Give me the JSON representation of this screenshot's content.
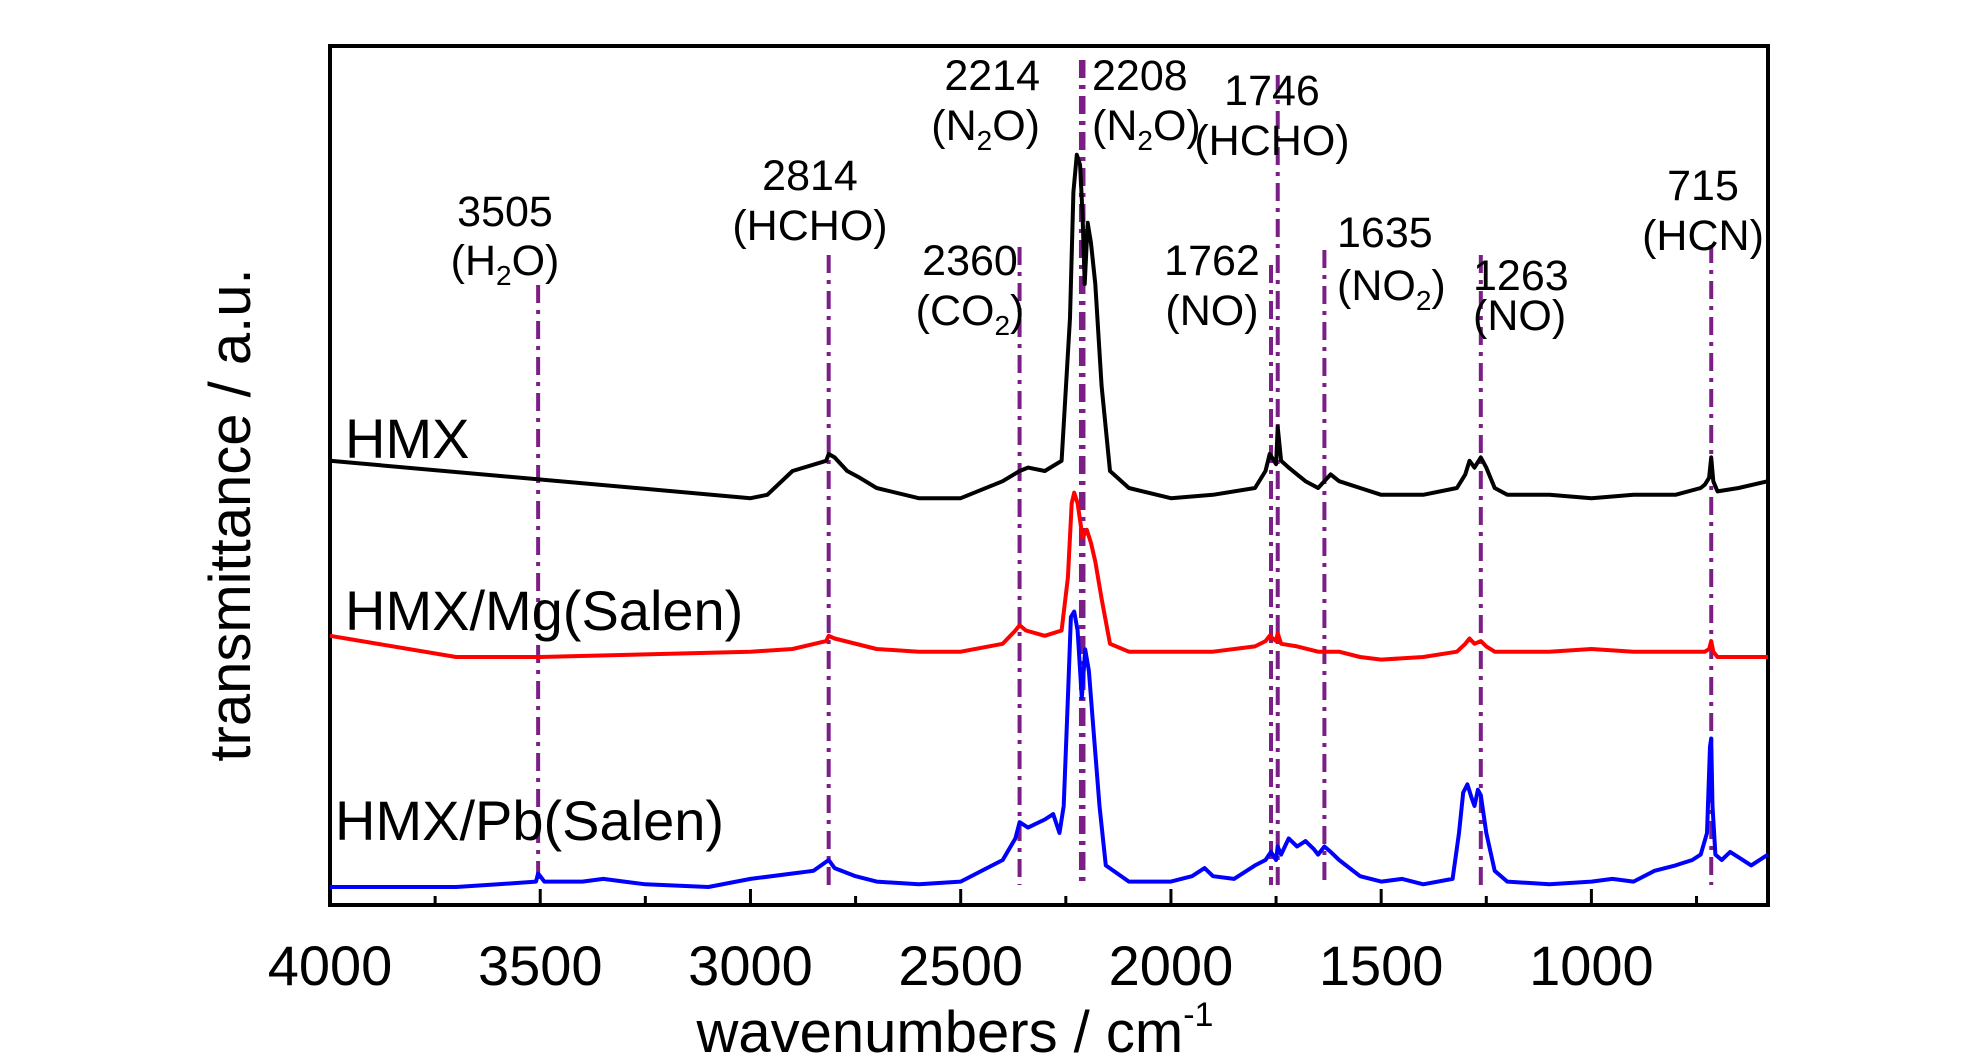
{
  "chart_data": {
    "type": "line",
    "xlabel": "wavenumbers / cm",
    "xlabel_sup": "-1",
    "ylabel": "transmittance / a.u.",
    "xlim": [
      4000,
      580
    ],
    "x_reversed": true,
    "x_ticks": [
      4000,
      3500,
      3000,
      2500,
      2000,
      1500,
      1000
    ],
    "x_tick_labels": [
      "4000",
      "3500",
      "3000",
      "2500",
      "2000",
      "1500",
      "1000"
    ],
    "ylim": [
      0,
      1
    ],
    "grid": false,
    "legend": "none",
    "series": [
      {
        "name": "HMX",
        "color": "#000000",
        "points": [
          [
            4000,
            0.08
          ],
          [
            3000,
            -0.03
          ],
          [
            2960,
            -0.02
          ],
          [
            2900,
            0.05
          ],
          [
            2820,
            0.08
          ],
          [
            2814,
            0.1
          ],
          [
            2800,
            0.09
          ],
          [
            2770,
            0.05
          ],
          [
            2740,
            0.03
          ],
          [
            2700,
            0.0
          ],
          [
            2600,
            -0.03
          ],
          [
            2500,
            -0.03
          ],
          [
            2400,
            0.02
          ],
          [
            2360,
            0.05
          ],
          [
            2340,
            0.06
          ],
          [
            2300,
            0.05
          ],
          [
            2260,
            0.08
          ],
          [
            2240,
            0.5
          ],
          [
            2232,
            0.87
          ],
          [
            2224,
            0.98
          ],
          [
            2216,
            0.95
          ],
          [
            2210,
            0.8
          ],
          [
            2205,
            0.6
          ],
          [
            2198,
            0.78
          ],
          [
            2190,
            0.72
          ],
          [
            2180,
            0.6
          ],
          [
            2165,
            0.3
          ],
          [
            2145,
            0.05
          ],
          [
            2100,
            0.0
          ],
          [
            2000,
            -0.03
          ],
          [
            1900,
            -0.02
          ],
          [
            1800,
            0.0
          ],
          [
            1775,
            0.05
          ],
          [
            1765,
            0.1
          ],
          [
            1750,
            0.07
          ],
          [
            1746,
            0.18
          ],
          [
            1738,
            0.08
          ],
          [
            1720,
            0.06
          ],
          [
            1700,
            0.04
          ],
          [
            1680,
            0.02
          ],
          [
            1650,
            0.0
          ],
          [
            1635,
            0.02
          ],
          [
            1620,
            0.04
          ],
          [
            1600,
            0.02
          ],
          [
            1550,
            0.0
          ],
          [
            1500,
            -0.02
          ],
          [
            1400,
            -0.02
          ],
          [
            1320,
            0.0
          ],
          [
            1300,
            0.04
          ],
          [
            1290,
            0.08
          ],
          [
            1278,
            0.06
          ],
          [
            1263,
            0.09
          ],
          [
            1250,
            0.06
          ],
          [
            1230,
            0.0
          ],
          [
            1200,
            -0.02
          ],
          [
            1100,
            -0.02
          ],
          [
            1000,
            -0.03
          ],
          [
            900,
            -0.02
          ],
          [
            800,
            -0.02
          ],
          [
            740,
            0.0
          ],
          [
            730,
            0.01
          ],
          [
            720,
            0.03
          ],
          [
            715,
            0.09
          ],
          [
            710,
            0.02
          ],
          [
            700,
            -0.01
          ],
          [
            650,
            0.0
          ],
          [
            580,
            0.02
          ]
        ]
      },
      {
        "name": "HMX/Mg(Salen)",
        "color": "#ff0000",
        "points": [
          [
            4000,
            0.08
          ],
          [
            3700,
            0.0
          ],
          [
            3500,
            0.0
          ],
          [
            3000,
            0.02
          ],
          [
            2900,
            0.03
          ],
          [
            2820,
            0.06
          ],
          [
            2814,
            0.08
          ],
          [
            2800,
            0.07
          ],
          [
            2700,
            0.03
          ],
          [
            2600,
            0.02
          ],
          [
            2500,
            0.02
          ],
          [
            2400,
            0.05
          ],
          [
            2370,
            0.1
          ],
          [
            2360,
            0.12
          ],
          [
            2345,
            0.1
          ],
          [
            2300,
            0.08
          ],
          [
            2260,
            0.1
          ],
          [
            2245,
            0.3
          ],
          [
            2236,
            0.58
          ],
          [
            2230,
            0.62
          ],
          [
            2222,
            0.58
          ],
          [
            2210,
            0.45
          ],
          [
            2200,
            0.48
          ],
          [
            2190,
            0.43
          ],
          [
            2180,
            0.36
          ],
          [
            2165,
            0.22
          ],
          [
            2145,
            0.05
          ],
          [
            2100,
            0.02
          ],
          [
            2000,
            0.02
          ],
          [
            1900,
            0.02
          ],
          [
            1800,
            0.04
          ],
          [
            1775,
            0.06
          ],
          [
            1765,
            0.08
          ],
          [
            1750,
            0.06
          ],
          [
            1746,
            0.09
          ],
          [
            1738,
            0.05
          ],
          [
            1700,
            0.04
          ],
          [
            1650,
            0.02
          ],
          [
            1600,
            0.02
          ],
          [
            1550,
            0.0
          ],
          [
            1500,
            -0.01
          ],
          [
            1400,
            0.0
          ],
          [
            1320,
            0.02
          ],
          [
            1300,
            0.05
          ],
          [
            1290,
            0.07
          ],
          [
            1278,
            0.05
          ],
          [
            1263,
            0.06
          ],
          [
            1250,
            0.04
          ],
          [
            1230,
            0.02
          ],
          [
            1100,
            0.02
          ],
          [
            1000,
            0.03
          ],
          [
            900,
            0.02
          ],
          [
            800,
            0.02
          ],
          [
            730,
            0.02
          ],
          [
            720,
            0.03
          ],
          [
            715,
            0.06
          ],
          [
            710,
            0.02
          ],
          [
            700,
            0.0
          ],
          [
            650,
            0.0
          ],
          [
            580,
            0.0
          ]
        ]
      },
      {
        "name": "HMX/Pb(Salen)",
        "color": "#0000ff",
        "points": [
          [
            4000,
            0.0
          ],
          [
            3700,
            0.0
          ],
          [
            3600,
            0.01
          ],
          [
            3510,
            0.02
          ],
          [
            3505,
            0.05
          ],
          [
            3490,
            0.02
          ],
          [
            3400,
            0.02
          ],
          [
            3350,
            0.03
          ],
          [
            3300,
            0.02
          ],
          [
            3250,
            0.01
          ],
          [
            3100,
            0.0
          ],
          [
            3000,
            0.03
          ],
          [
            2900,
            0.05
          ],
          [
            2850,
            0.06
          ],
          [
            2814,
            0.1
          ],
          [
            2800,
            0.07
          ],
          [
            2750,
            0.04
          ],
          [
            2700,
            0.02
          ],
          [
            2600,
            0.01
          ],
          [
            2500,
            0.02
          ],
          [
            2400,
            0.1
          ],
          [
            2370,
            0.18
          ],
          [
            2360,
            0.24
          ],
          [
            2340,
            0.22
          ],
          [
            2300,
            0.25
          ],
          [
            2280,
            0.27
          ],
          [
            2265,
            0.2
          ],
          [
            2255,
            0.3
          ],
          [
            2245,
            0.7
          ],
          [
            2238,
            1.0
          ],
          [
            2230,
            1.02
          ],
          [
            2222,
            0.95
          ],
          [
            2212,
            0.7
          ],
          [
            2204,
            0.88
          ],
          [
            2195,
            0.8
          ],
          [
            2185,
            0.6
          ],
          [
            2170,
            0.3
          ],
          [
            2155,
            0.08
          ],
          [
            2100,
            0.02
          ],
          [
            2000,
            0.02
          ],
          [
            1950,
            0.04
          ],
          [
            1920,
            0.07
          ],
          [
            1900,
            0.04
          ],
          [
            1850,
            0.03
          ],
          [
            1800,
            0.08
          ],
          [
            1775,
            0.1
          ],
          [
            1762,
            0.13
          ],
          [
            1750,
            0.1
          ],
          [
            1746,
            0.15
          ],
          [
            1738,
            0.12
          ],
          [
            1720,
            0.18
          ],
          [
            1700,
            0.15
          ],
          [
            1680,
            0.17
          ],
          [
            1660,
            0.14
          ],
          [
            1650,
            0.12
          ],
          [
            1635,
            0.15
          ],
          [
            1620,
            0.13
          ],
          [
            1600,
            0.1
          ],
          [
            1550,
            0.04
          ],
          [
            1500,
            0.02
          ],
          [
            1450,
            0.03
          ],
          [
            1400,
            0.01
          ],
          [
            1330,
            0.03
          ],
          [
            1315,
            0.2
          ],
          [
            1305,
            0.35
          ],
          [
            1295,
            0.38
          ],
          [
            1285,
            0.33
          ],
          [
            1278,
            0.3
          ],
          [
            1270,
            0.36
          ],
          [
            1263,
            0.34
          ],
          [
            1250,
            0.2
          ],
          [
            1230,
            0.06
          ],
          [
            1200,
            0.02
          ],
          [
            1100,
            0.01
          ],
          [
            1000,
            0.02
          ],
          [
            950,
            0.03
          ],
          [
            900,
            0.02
          ],
          [
            850,
            0.06
          ],
          [
            800,
            0.08
          ],
          [
            760,
            0.1
          ],
          [
            740,
            0.12
          ],
          [
            725,
            0.2
          ],
          [
            718,
            0.52
          ],
          [
            715,
            0.55
          ],
          [
            712,
            0.3
          ],
          [
            705,
            0.12
          ],
          [
            690,
            0.1
          ],
          [
            670,
            0.13
          ],
          [
            650,
            0.11
          ],
          [
            620,
            0.08
          ],
          [
            580,
            0.12
          ]
        ]
      }
    ],
    "series_labels": [
      "HMX",
      "HMX/Mg(Salen)",
      "HMX/Pb(Salen)"
    ],
    "annotations": [
      {
        "x": 3505,
        "value": "3505",
        "species": "H",
        "sub": "2",
        "tail": "O"
      },
      {
        "x": 2814,
        "value": "2814",
        "species": "HCHO",
        "sub": "",
        "tail": ""
      },
      {
        "x": 2360,
        "value": "2360",
        "species": "CO",
        "sub": "2",
        "tail": ""
      },
      {
        "x": 2214,
        "value": "2214",
        "species": "N",
        "sub": "2",
        "tail": "O"
      },
      {
        "x": 2208,
        "value": "2208",
        "species": "N",
        "sub": "2",
        "tail": "O"
      },
      {
        "x": 1762,
        "value": "1762",
        "species": "NO",
        "sub": "",
        "tail": ""
      },
      {
        "x": 1746,
        "value": "1746",
        "species": "HCHO",
        "sub": "",
        "tail": ""
      },
      {
        "x": 1635,
        "value": "1635",
        "species": "NO",
        "sub": "2",
        "tail": ""
      },
      {
        "x": 1263,
        "value": "1263",
        "species": "NO",
        "sub": "",
        "tail": ""
      },
      {
        "x": 715,
        "value": "715",
        "species": "HCN",
        "sub": "",
        "tail": ""
      }
    ],
    "annotation_line_color": "#7b1f86"
  }
}
